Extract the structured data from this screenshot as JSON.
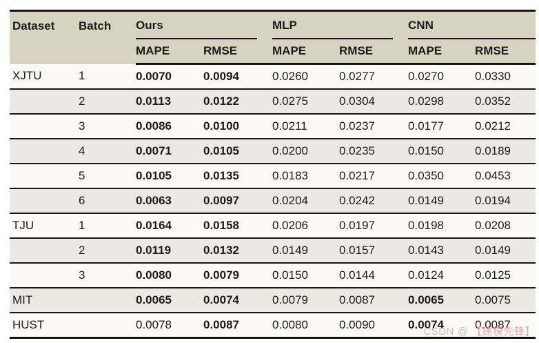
{
  "table": {
    "header": {
      "dataset": "Dataset",
      "batch": "Batch"
    },
    "groups": [
      {
        "label": "Ours"
      },
      {
        "label": "MLP"
      },
      {
        "label": "CNN"
      }
    ],
    "subheaders": [
      "MAPE",
      "RMSE",
      "MAPE",
      "RMSE",
      "MAPE",
      "RMSE"
    ],
    "rows": [
      {
        "dataset": "XJTU",
        "batch": "1",
        "values": [
          {
            "v": "0.0070",
            "bold": true
          },
          {
            "v": "0.0094",
            "bold": true
          },
          {
            "v": "0.0260",
            "bold": false
          },
          {
            "v": "0.0277",
            "bold": false
          },
          {
            "v": "0.0270",
            "bold": false
          },
          {
            "v": "0.0330",
            "bold": false
          }
        ]
      },
      {
        "dataset": "",
        "batch": "2",
        "values": [
          {
            "v": "0.0113",
            "bold": true
          },
          {
            "v": "0.0122",
            "bold": true
          },
          {
            "v": "0.0275",
            "bold": false
          },
          {
            "v": "0.0304",
            "bold": false
          },
          {
            "v": "0.0298",
            "bold": false
          },
          {
            "v": "0.0352",
            "bold": false
          }
        ]
      },
      {
        "dataset": "",
        "batch": "3",
        "values": [
          {
            "v": "0.0086",
            "bold": true
          },
          {
            "v": "0.0100",
            "bold": true
          },
          {
            "v": "0.0211",
            "bold": false
          },
          {
            "v": "0.0237",
            "bold": false
          },
          {
            "v": "0.0177",
            "bold": false
          },
          {
            "v": "0.0212",
            "bold": false
          }
        ]
      },
      {
        "dataset": "",
        "batch": "4",
        "values": [
          {
            "v": "0.0071",
            "bold": true
          },
          {
            "v": "0.0105",
            "bold": true
          },
          {
            "v": "0.0200",
            "bold": false
          },
          {
            "v": "0.0235",
            "bold": false
          },
          {
            "v": "0.0150",
            "bold": false
          },
          {
            "v": "0.0189",
            "bold": false
          }
        ]
      },
      {
        "dataset": "",
        "batch": "5",
        "values": [
          {
            "v": "0.0105",
            "bold": true
          },
          {
            "v": "0.0135",
            "bold": true
          },
          {
            "v": "0.0183",
            "bold": false
          },
          {
            "v": "0.0217",
            "bold": false
          },
          {
            "v": "0.0350",
            "bold": false
          },
          {
            "v": "0.0453",
            "bold": false
          }
        ]
      },
      {
        "dataset": "",
        "batch": "6",
        "values": [
          {
            "v": "0.0063",
            "bold": true
          },
          {
            "v": "0.0097",
            "bold": true
          },
          {
            "v": "0.0204",
            "bold": false
          },
          {
            "v": "0.0242",
            "bold": false
          },
          {
            "v": "0.0149",
            "bold": false
          },
          {
            "v": "0.0194",
            "bold": false
          }
        ]
      },
      {
        "dataset": "TJU",
        "batch": "1",
        "values": [
          {
            "v": "0.0164",
            "bold": true
          },
          {
            "v": "0.0158",
            "bold": true
          },
          {
            "v": "0.0206",
            "bold": false
          },
          {
            "v": "0.0197",
            "bold": false
          },
          {
            "v": "0.0198",
            "bold": false
          },
          {
            "v": "0.0208",
            "bold": false
          }
        ]
      },
      {
        "dataset": "",
        "batch": "2",
        "values": [
          {
            "v": "0.0119",
            "bold": true
          },
          {
            "v": "0.0132",
            "bold": true
          },
          {
            "v": "0.0149",
            "bold": false
          },
          {
            "v": "0.0157",
            "bold": false
          },
          {
            "v": "0.0143",
            "bold": false
          },
          {
            "v": "0.0149",
            "bold": false
          }
        ]
      },
      {
        "dataset": "",
        "batch": "3",
        "values": [
          {
            "v": "0.0080",
            "bold": true
          },
          {
            "v": "0.0079",
            "bold": true
          },
          {
            "v": "0.0150",
            "bold": false
          },
          {
            "v": "0.0144",
            "bold": false
          },
          {
            "v": "0.0124",
            "bold": false
          },
          {
            "v": "0.0125",
            "bold": false
          }
        ]
      },
      {
        "dataset": "MIT",
        "batch": "",
        "values": [
          {
            "v": "0.0065",
            "bold": true
          },
          {
            "v": "0.0074",
            "bold": true
          },
          {
            "v": "0.0079",
            "bold": false
          },
          {
            "v": "0.0087",
            "bold": false
          },
          {
            "v": "0.0065",
            "bold": true
          },
          {
            "v": "0.0075",
            "bold": false
          }
        ]
      },
      {
        "dataset": "HUST",
        "batch": "",
        "values": [
          {
            "v": "0.0078",
            "bold": false
          },
          {
            "v": "0.0087",
            "bold": true
          },
          {
            "v": "0.0080",
            "bold": false
          },
          {
            "v": "0.0090",
            "bold": false
          },
          {
            "v": "0.0074",
            "bold": true
          },
          {
            "v": "0.0087",
            "bold": false
          }
        ]
      }
    ]
  },
  "watermark": {
    "prefix": "CSDN @",
    "handle": "【建模先锋】"
  },
  "colors": {
    "header_bg": "#d6d4c0",
    "row_light_bg": "#fbfaf5",
    "row_shade_bg": "#eae9e3",
    "border": "#161616",
    "watermark_gray": "#bdbdbd",
    "watermark_pink": "#e9a3a3"
  }
}
